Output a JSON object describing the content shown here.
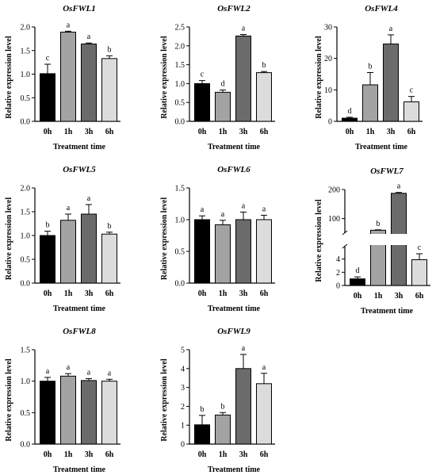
{
  "colors": {
    "bars": [
      "#000000",
      "#a3a3a3",
      "#6b6b6b",
      "#dcdcdc"
    ],
    "stroke": "#000000"
  },
  "chart_data": [
    {
      "type": "bar",
      "title": "OsFWL1",
      "xlabel": "Treatment time",
      "ylabel": "Relative expression level",
      "categories": [
        "0h",
        "1h",
        "3h",
        "6h"
      ],
      "values": [
        1.01,
        1.89,
        1.64,
        1.33
      ],
      "errors": [
        0.2,
        0.02,
        0.02,
        0.06
      ],
      "significance": [
        "c",
        "a",
        "a",
        "b"
      ],
      "ylim": [
        0,
        2.0
      ],
      "yticks": [
        0.0,
        0.5,
        1.0,
        1.5,
        2.0
      ],
      "ytick_labels": [
        "0.0",
        "0.5",
        "1.0",
        "1.5",
        "2.0"
      ]
    },
    {
      "type": "bar",
      "title": "OsFWL2",
      "xlabel": "Treatment time",
      "ylabel": "Relative expression level",
      "categories": [
        "0h",
        "1h",
        "3h",
        "6h"
      ],
      "values": [
        1.0,
        0.77,
        2.26,
        1.29
      ],
      "errors": [
        0.08,
        0.06,
        0.04,
        0.03
      ],
      "significance": [
        "c",
        "d",
        "a",
        "b"
      ],
      "ylim": [
        0,
        2.5
      ],
      "yticks": [
        0.0,
        0.5,
        1.0,
        1.5,
        2.0,
        2.5
      ],
      "ytick_labels": [
        "0.0",
        "0.5",
        "1.0",
        "1.5",
        "2.0",
        "2.5"
      ]
    },
    {
      "type": "bar",
      "title": "OsFWL4",
      "xlabel": "Treatment time",
      "ylabel": "Relative expression level",
      "categories": [
        "0h",
        "1h",
        "3h",
        "6h"
      ],
      "values": [
        1.0,
        11.6,
        24.6,
        6.2
      ],
      "errors": [
        0.3,
        3.9,
        2.9,
        1.7
      ],
      "significance": [
        "d",
        "b",
        "a",
        "c"
      ],
      "ylim": [
        0,
        30
      ],
      "yticks": [
        0,
        10,
        20,
        30
      ],
      "ytick_labels": [
        "0",
        "10",
        "20",
        "30"
      ]
    },
    {
      "type": "bar",
      "title": "OsFWL5",
      "xlabel": "Treatment time",
      "ylabel": "Relative expression level",
      "categories": [
        "0h",
        "1h",
        "3h",
        "6h"
      ],
      "values": [
        1.0,
        1.32,
        1.45,
        1.03
      ],
      "errors": [
        0.09,
        0.13,
        0.2,
        0.04
      ],
      "significance": [
        "b",
        "a",
        "a",
        "b"
      ],
      "ylim": [
        0,
        2.0
      ],
      "yticks": [
        0.0,
        0.5,
        1.0,
        1.5,
        2.0
      ],
      "ytick_labels": [
        "0.0",
        "0.5",
        "1.0",
        "1.5",
        "2.0"
      ]
    },
    {
      "type": "bar",
      "title": "OsFWL6",
      "xlabel": "Treatment time",
      "ylabel": "Relative expression level",
      "categories": [
        "0h",
        "1h",
        "3h",
        "6h"
      ],
      "values": [
        1.0,
        0.92,
        1.0,
        1.0
      ],
      "errors": [
        0.06,
        0.07,
        0.12,
        0.07
      ],
      "significance": [
        "a",
        "a",
        "a",
        "a"
      ],
      "ylim": [
        0,
        1.5
      ],
      "yticks": [
        0.0,
        0.5,
        1.0,
        1.5
      ],
      "ytick_labels": [
        "0.0",
        "0.5",
        "1.0",
        "1.5"
      ]
    },
    {
      "type": "bar",
      "title": "OsFWL7",
      "xlabel": "Treatment time",
      "ylabel": "Relative expression level",
      "categories": [
        "0h",
        "1h",
        "3h",
        "6h"
      ],
      "values": [
        1.0,
        60.0,
        187.0,
        3.9
      ],
      "errors": [
        0.3,
        1.5,
        3.0,
        0.9
      ],
      "significance": [
        "d",
        "b",
        "a",
        "c"
      ],
      "broken_axis": true,
      "lower_ylim": [
        0,
        6
      ],
      "lower_yticks": [
        0,
        2,
        4
      ],
      "lower_ytick_labels": [
        "0",
        "2",
        "4"
      ],
      "upper_ylim": [
        50,
        200
      ],
      "upper_yticks": [
        100,
        200
      ],
      "upper_ytick_labels": [
        "100",
        "200"
      ]
    },
    {
      "type": "bar",
      "title": "OsFWL8",
      "xlabel": "Treatment time",
      "ylabel": "Relative expression level",
      "categories": [
        "0h",
        "1h",
        "3h",
        "6h"
      ],
      "values": [
        1.0,
        1.08,
        1.01,
        1.0
      ],
      "errors": [
        0.06,
        0.04,
        0.03,
        0.03
      ],
      "significance": [
        "a",
        "a",
        "a",
        "a"
      ],
      "ylim": [
        0,
        1.5
      ],
      "yticks": [
        0.0,
        0.5,
        1.0,
        1.5
      ],
      "ytick_labels": [
        "0.0",
        "0.5",
        "1.0",
        "1.5"
      ]
    },
    {
      "type": "bar",
      "title": "OsFWL9",
      "xlabel": "Treatment time",
      "ylabel": "Relative expression level",
      "categories": [
        "0h",
        "1h",
        "3h",
        "6h"
      ],
      "values": [
        1.02,
        1.54,
        4.0,
        3.2
      ],
      "errors": [
        0.5,
        0.13,
        0.75,
        0.55
      ],
      "significance": [
        "b",
        "b",
        "a",
        "a"
      ],
      "ylim": [
        0,
        5
      ],
      "yticks": [
        0,
        1,
        2,
        3,
        4,
        5
      ],
      "ytick_labels": [
        "0",
        "1",
        "2",
        "3",
        "4",
        "5"
      ]
    }
  ]
}
